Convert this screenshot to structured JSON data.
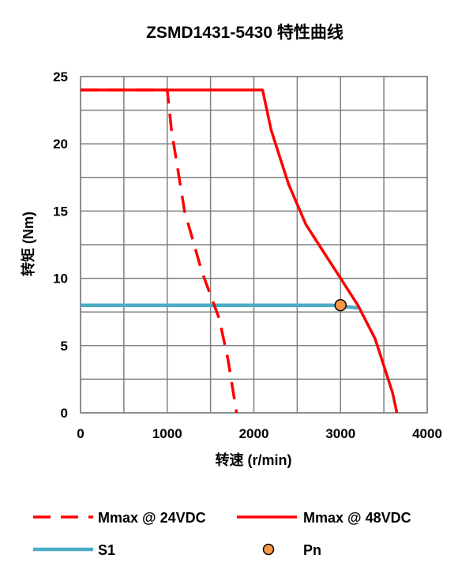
{
  "chart_data": {
    "type": "line",
    "title": "ZSMD1431-5430 特性曲线",
    "xlabel": "转速 (r/min)",
    "ylabel": "转矩 (Nm)",
    "xlim": [
      0,
      4000
    ],
    "ylim": [
      0,
      25
    ],
    "xticks": [
      0,
      1000,
      2000,
      3000,
      4000
    ],
    "yticks": [
      0,
      5,
      10,
      15,
      20,
      25
    ],
    "grid": true,
    "legend_position": "bottom",
    "series": [
      {
        "name": "Mmax @ 24VDC",
        "color": "#ff0000",
        "style": "dashed",
        "points": [
          [
            0,
            24
          ],
          [
            1000,
            24
          ],
          [
            1050,
            21
          ],
          [
            1200,
            15
          ],
          [
            1400,
            10.5
          ],
          [
            1600,
            7
          ],
          [
            1700,
            4
          ],
          [
            1800,
            0
          ]
        ]
      },
      {
        "name": "Mmax @ 48VDC",
        "color": "#ff0000",
        "style": "solid",
        "points": [
          [
            0,
            24
          ],
          [
            2100,
            24
          ],
          [
            2200,
            21
          ],
          [
            2400,
            17
          ],
          [
            2600,
            14
          ],
          [
            2800,
            12
          ],
          [
            3000,
            10
          ],
          [
            3200,
            8
          ],
          [
            3400,
            5.5
          ],
          [
            3500,
            3.5
          ],
          [
            3600,
            1.5
          ],
          [
            3650,
            0
          ]
        ]
      },
      {
        "name": "S1",
        "color": "#4bacc6",
        "style": "solid",
        "points": [
          [
            0,
            8
          ],
          [
            2900,
            8
          ],
          [
            3050,
            7.9
          ],
          [
            3200,
            7.8
          ]
        ]
      },
      {
        "name": "Pn",
        "color": "#f79646",
        "style": "marker",
        "points": [
          [
            3000,
            8
          ]
        ]
      }
    ]
  }
}
